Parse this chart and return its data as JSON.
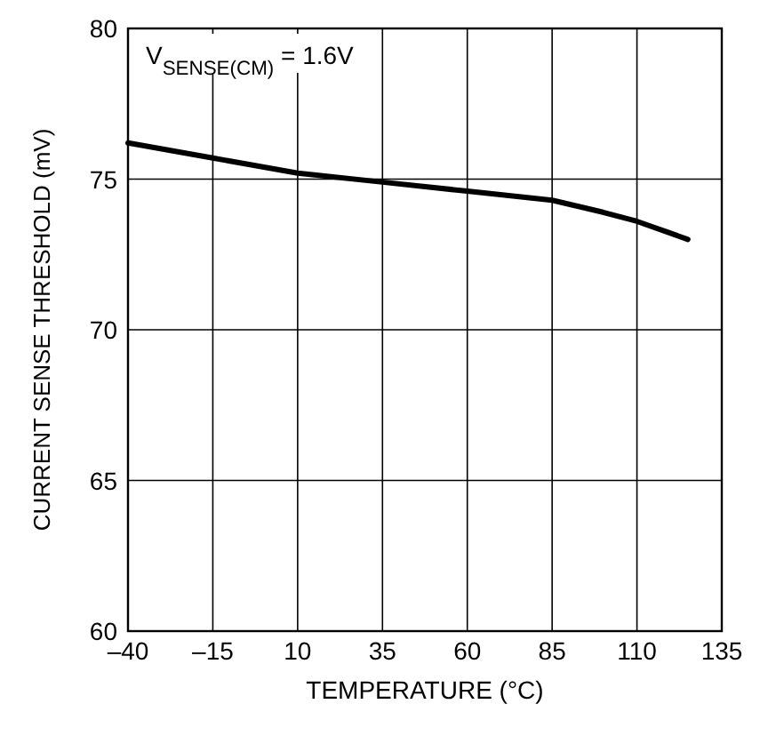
{
  "chart_data": {
    "type": "line",
    "xlabel": "TEMPERATURE (°C)",
    "ylabel": "CURRENT SENSE THRESHOLD (mV)",
    "annotations": [
      "V$_{SENSE(CM)}$ = 1.6V"
    ],
    "series": [
      {
        "color": "#000000",
        "x": [
          -40,
          -15,
          10,
          35,
          60,
          85,
          100,
          110,
          125
        ],
        "values": [
          76.2,
          75.7,
          75.2,
          74.9,
          74.6,
          74.3,
          73.9,
          73.6,
          73.0
        ]
      }
    ],
    "xlim": [
      -40,
      135
    ],
    "xticks": [
      {
        "value": -40,
        "label": "–40"
      },
      {
        "value": -15,
        "label": "–15"
      },
      10,
      35,
      60,
      85,
      110,
      135
    ],
    "ylim": [
      60,
      80
    ],
    "yticks": [
      60,
      65,
      70,
      75,
      80
    ],
    "grid": true,
    "line_style": "solid",
    "marker": "none"
  }
}
